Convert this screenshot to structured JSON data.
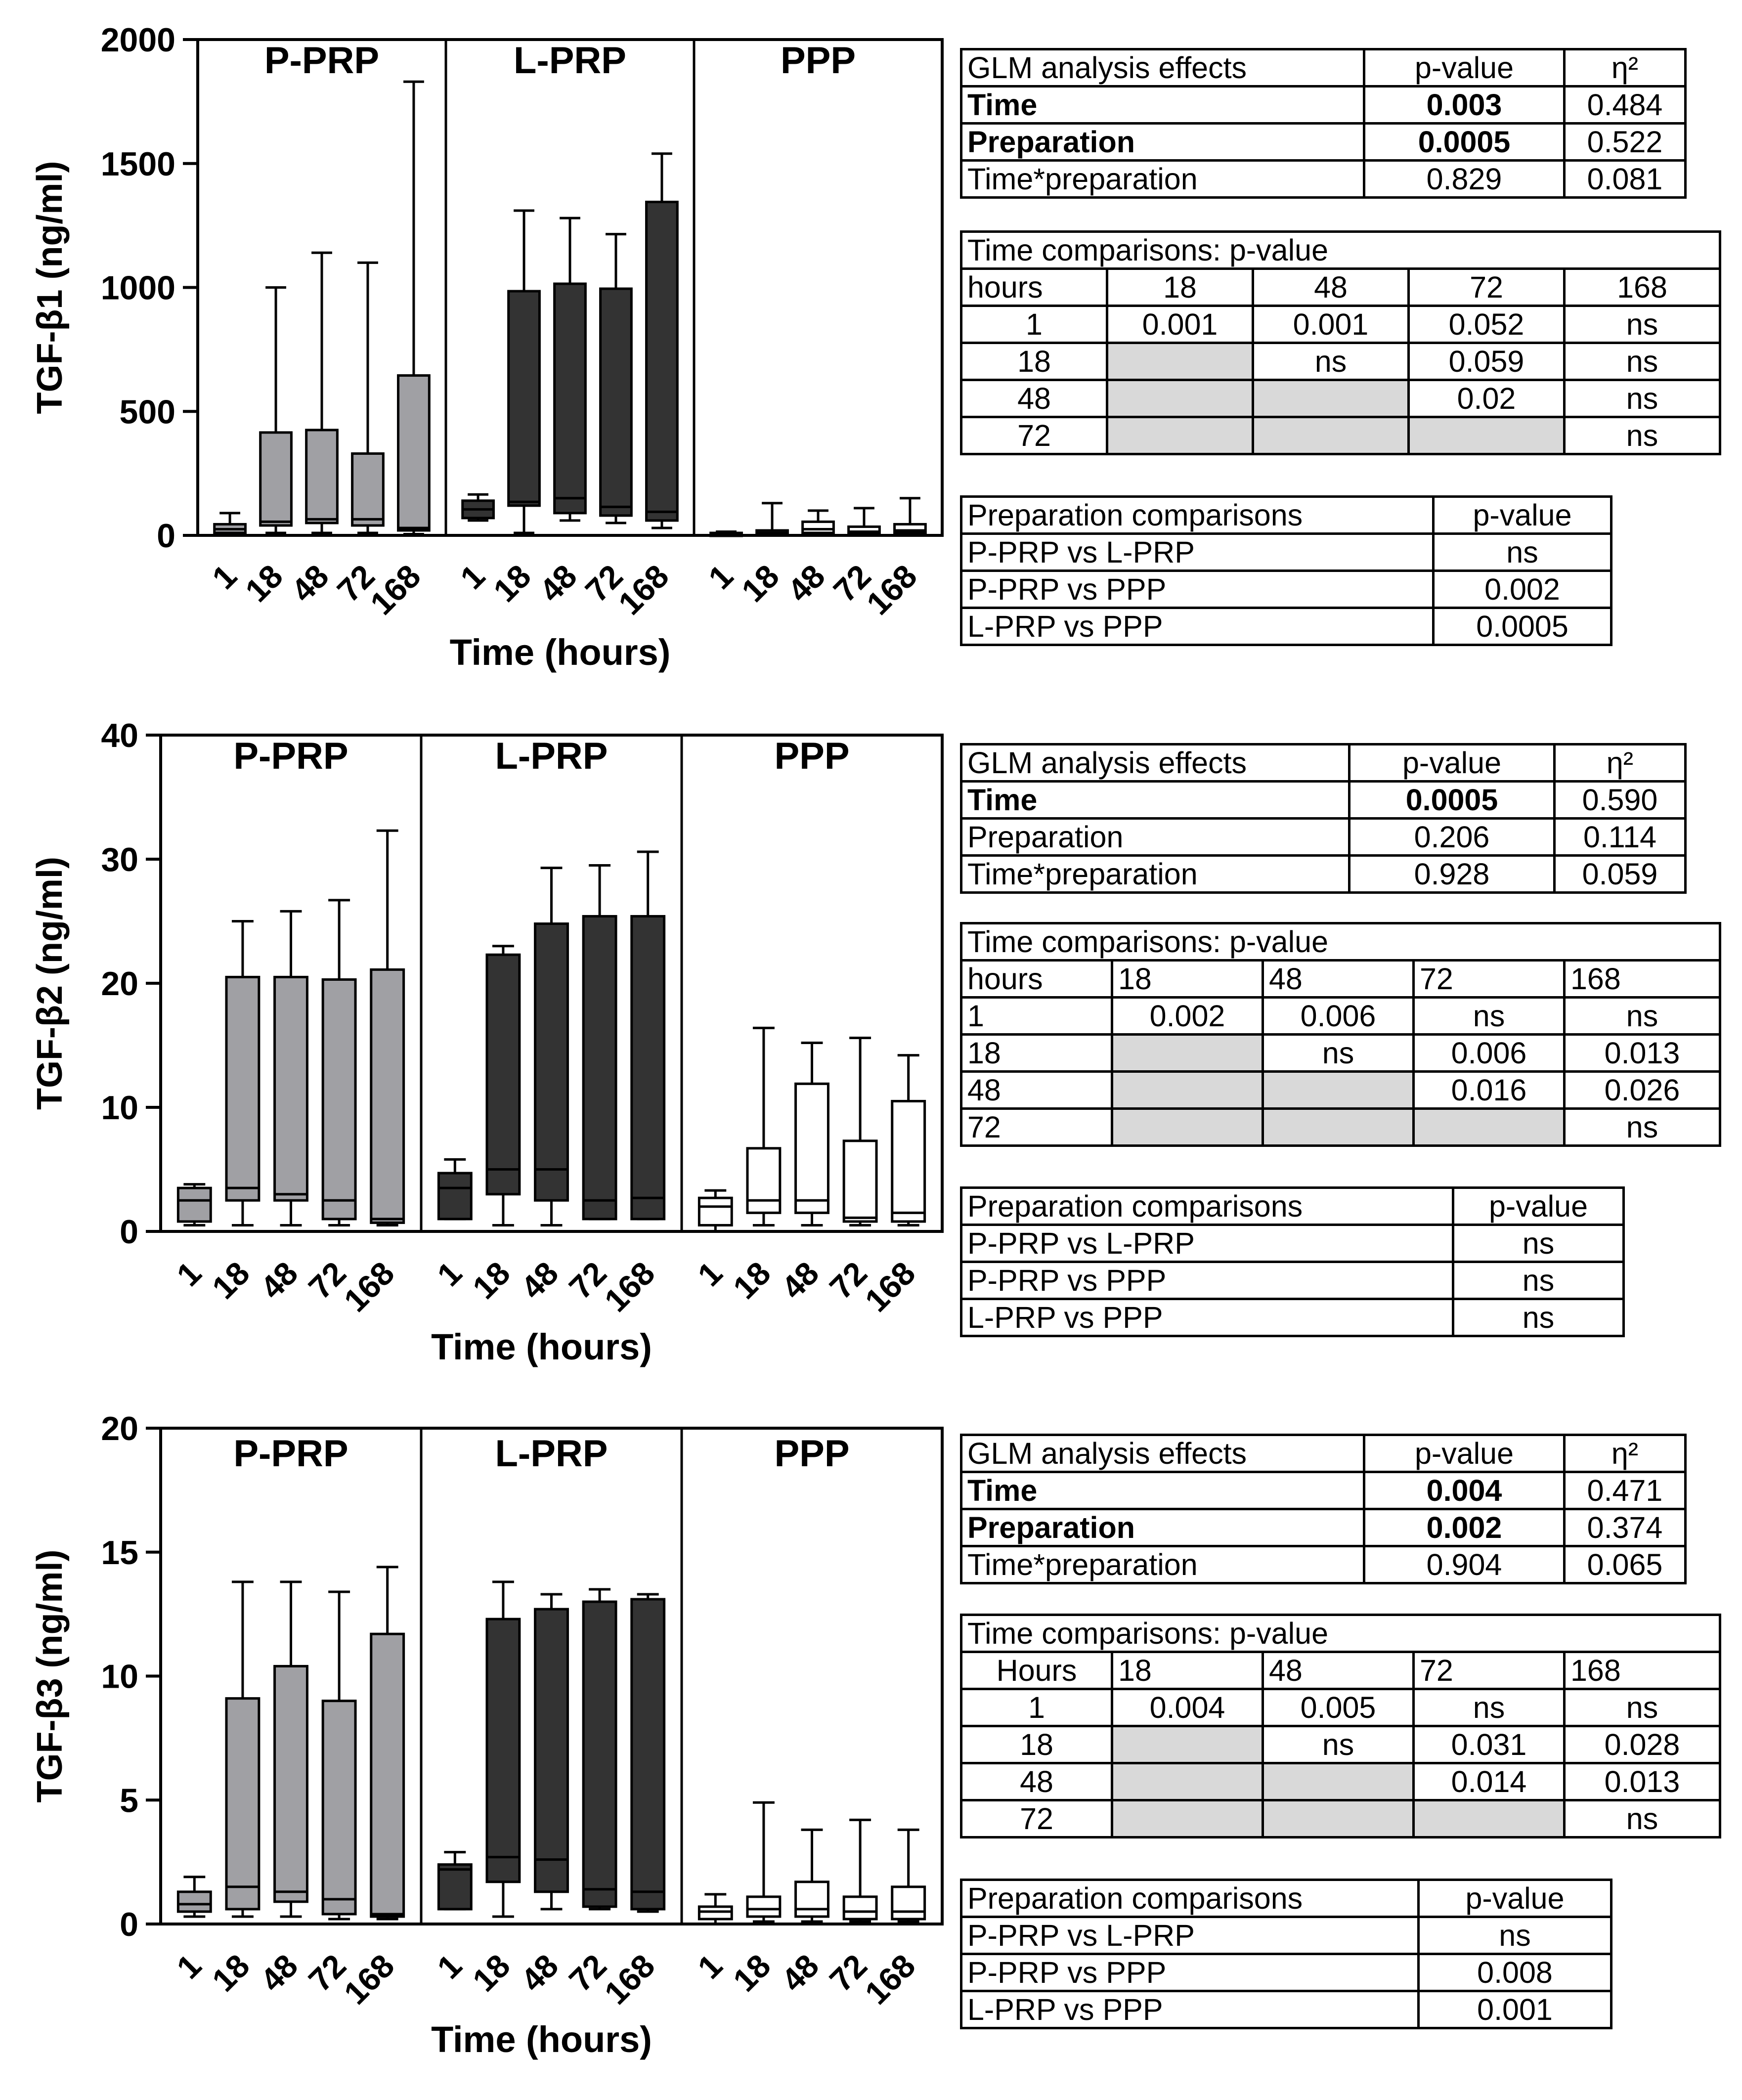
{
  "colors": {
    "p_prp": "#a0a0a4",
    "l_prp": "#333333",
    "ppp": "#ffffff",
    "grid_gray": "#d9d9d9"
  },
  "chart_data": [
    {
      "type": "box",
      "ylabel": "TGF-β1 (ng/ml)",
      "xlabel": "Time (hours)",
      "ylim": [
        0,
        2000
      ],
      "yticks": [
        "0",
        "500",
        "1000",
        "1500",
        "2000"
      ],
      "categories": [
        "1",
        "18",
        "48",
        "72",
        "168"
      ],
      "groups": [
        {
          "name": "P-PRP",
          "boxes": [
            {
              "min": 0,
              "q1": 10,
              "median": 25,
              "q3": 45,
              "max": 90
            },
            {
              "min": 10,
              "q1": 40,
              "median": 55,
              "q3": 415,
              "max": 1000
            },
            {
              "min": 10,
              "q1": 50,
              "median": 65,
              "q3": 425,
              "max": 1140
            },
            {
              "min": 10,
              "q1": 40,
              "median": 65,
              "q3": 330,
              "max": 1100
            },
            {
              "min": 5,
              "q1": 20,
              "median": 30,
              "q3": 645,
              "max": 1830
            }
          ]
        },
        {
          "name": "L-PRP",
          "boxes": [
            {
              "min": 60,
              "q1": 70,
              "median": 105,
              "q3": 140,
              "max": 165
            },
            {
              "min": 10,
              "q1": 120,
              "median": 135,
              "q3": 985,
              "max": 1310
            },
            {
              "min": 60,
              "q1": 90,
              "median": 150,
              "q3": 1015,
              "max": 1280
            },
            {
              "min": 50,
              "q1": 80,
              "median": 115,
              "q3": 995,
              "max": 1215
            },
            {
              "min": 30,
              "q1": 60,
              "median": 95,
              "q3": 1345,
              "max": 1540
            }
          ]
        },
        {
          "name": "PPP",
          "boxes": [
            {
              "min": 0,
              "q1": 2,
              "median": 5,
              "q3": 10,
              "max": 15
            },
            {
              "min": 0,
              "q1": 5,
              "median": 10,
              "q3": 20,
              "max": 130
            },
            {
              "min": 0,
              "q1": 10,
              "median": 25,
              "q3": 55,
              "max": 100
            },
            {
              "min": 0,
              "q1": 5,
              "median": 15,
              "q3": 35,
              "max": 110
            },
            {
              "min": 0,
              "q1": 10,
              "median": 20,
              "q3": 45,
              "max": 150
            }
          ]
        }
      ]
    },
    {
      "type": "box",
      "ylabel": "TGF-β2 (ng/ml)",
      "xlabel": "Time (hours)",
      "ylim": [
        0,
        40
      ],
      "yticks": [
        "0",
        "10",
        "20",
        "30",
        "40"
      ],
      "categories": [
        "1",
        "18",
        "48",
        "72",
        "168"
      ],
      "groups": [
        {
          "name": "P-PRP",
          "boxes": [
            {
              "min": 0.5,
              "q1": 0.8,
              "median": 2.5,
              "q3": 3.5,
              "max": 3.8
            },
            {
              "min": 0.5,
              "q1": 2.5,
              "median": 3.5,
              "q3": 20.5,
              "max": 25
            },
            {
              "min": 0.5,
              "q1": 2.5,
              "median": 3,
              "q3": 20.5,
              "max": 25.8
            },
            {
              "min": 0.5,
              "q1": 1,
              "median": 2.5,
              "q3": 20.3,
              "max": 26.7
            },
            {
              "min": 0.5,
              "q1": 0.7,
              "median": 1,
              "q3": 21.1,
              "max": 32.3
            }
          ]
        },
        {
          "name": "L-PRP",
          "boxes": [
            {
              "min": 1,
              "q1": 1,
              "median": 3.5,
              "q3": 4.7,
              "max": 5.8
            },
            {
              "min": 0.5,
              "q1": 3,
              "median": 5,
              "q3": 22.3,
              "max": 23
            },
            {
              "min": 0.5,
              "q1": 2.5,
              "median": 5,
              "q3": 24.8,
              "max": 29.3
            },
            {
              "min": 1,
              "q1": 1,
              "median": 2.5,
              "q3": 25.4,
              "max": 29.5
            },
            {
              "min": 1,
              "q1": 1,
              "median": 2.7,
              "q3": 25.4,
              "max": 30.6
            }
          ]
        },
        {
          "name": "PPP",
          "boxes": [
            {
              "min": 0,
              "q1": 0.5,
              "median": 2,
              "q3": 2.7,
              "max": 3.3
            },
            {
              "min": 0.5,
              "q1": 1.5,
              "median": 2.5,
              "q3": 6.7,
              "max": 16.4
            },
            {
              "min": 0.5,
              "q1": 1.5,
              "median": 2.5,
              "q3": 11.9,
              "max": 15.2
            },
            {
              "min": 0.5,
              "q1": 0.8,
              "median": 1.1,
              "q3": 7.3,
              "max": 15.6
            },
            {
              "min": 0.5,
              "q1": 0.8,
              "median": 1.5,
              "q3": 10.5,
              "max": 14.2
            }
          ]
        }
      ]
    },
    {
      "type": "box",
      "ylabel": "TGF-β3 (ng/ml)",
      "xlabel": "Time (hours)",
      "ylim": [
        0,
        20
      ],
      "yticks": [
        "0",
        "5",
        "10",
        "15",
        "20"
      ],
      "categories": [
        "1",
        "18",
        "48",
        "72",
        "168"
      ],
      "groups": [
        {
          "name": "P-PRP",
          "boxes": [
            {
              "min": 0.3,
              "q1": 0.5,
              "median": 0.8,
              "q3": 1.3,
              "max": 1.9
            },
            {
              "min": 0.3,
              "q1": 0.6,
              "median": 1.5,
              "q3": 9.1,
              "max": 13.8
            },
            {
              "min": 0.3,
              "q1": 0.9,
              "median": 1.3,
              "q3": 10.4,
              "max": 13.8
            },
            {
              "min": 0.2,
              "q1": 0.4,
              "median": 1,
              "q3": 9,
              "max": 13.4
            },
            {
              "min": 0.2,
              "q1": 0.3,
              "median": 0.4,
              "q3": 11.7,
              "max": 14.4
            }
          ]
        },
        {
          "name": "L-PRP",
          "boxes": [
            {
              "min": 0.6,
              "q1": 0.6,
              "median": 2.2,
              "q3": 2.4,
              "max": 2.9
            },
            {
              "min": 0.3,
              "q1": 1.7,
              "median": 2.7,
              "q3": 12.3,
              "max": 13.8
            },
            {
              "min": 0.6,
              "q1": 1.3,
              "median": 2.6,
              "q3": 12.7,
              "max": 13.3
            },
            {
              "min": 0.6,
              "q1": 0.7,
              "median": 1.4,
              "q3": 13,
              "max": 13.5
            },
            {
              "min": 0.5,
              "q1": 0.6,
              "median": 1.3,
              "q3": 13.1,
              "max": 13.3
            }
          ]
        },
        {
          "name": "PPP",
          "boxes": [
            {
              "min": 0,
              "q1": 0.2,
              "median": 0.5,
              "q3": 0.7,
              "max": 1.2
            },
            {
              "min": 0.1,
              "q1": 0.3,
              "median": 0.6,
              "q3": 1.1,
              "max": 4.9
            },
            {
              "min": 0.1,
              "q1": 0.3,
              "median": 0.6,
              "q3": 1.7,
              "max": 3.8
            },
            {
              "min": 0.1,
              "q1": 0.2,
              "median": 0.5,
              "q3": 1.1,
              "max": 4.2
            },
            {
              "min": 0.1,
              "q1": 0.2,
              "median": 0.5,
              "q3": 1.5,
              "max": 3.8
            }
          ]
        }
      ]
    }
  ],
  "tables": [
    {
      "glm": {
        "header": [
          "GLM  analysis effects",
          "p-value",
          "η²"
        ],
        "rows": [
          {
            "effect": "Time",
            "p": "0.003",
            "eta": "0.484"
          },
          {
            "effect": "Preparation",
            "p": "0.0005",
            "eta": "0.522"
          },
          {
            "effect": "Time*preparation",
            "p": "0.829",
            "eta": "0.081"
          }
        ]
      },
      "time": {
        "title": "Time  comparisons: p-value",
        "header": [
          "hours",
          "18",
          "48",
          "72",
          "168"
        ],
        "rows": [
          [
            "1",
            "0.001",
            "0.001",
            "0.052",
            "ns"
          ],
          [
            "18",
            "",
            "ns",
            "0.059",
            "ns"
          ],
          [
            "48",
            "",
            "",
            "0.02",
            "ns"
          ],
          [
            "72",
            "",
            "",
            "",
            "ns"
          ]
        ]
      },
      "prep": {
        "header": [
          "Preparation comparisons",
          "p-value"
        ],
        "rows": [
          [
            "P-PRP  vs L-PRP",
            "ns"
          ],
          [
            "P-PRP vs PPP",
            "0.002"
          ],
          [
            "L-PRP vs PPP",
            "0.0005"
          ]
        ]
      }
    },
    {
      "glm": {
        "header": [
          "GLM analysis effects",
          "p-value",
          "η²"
        ],
        "rows": [
          {
            "effect": "Time",
            "p": "0.0005",
            "eta": "0.590"
          },
          {
            "effect": "Preparation",
            "p": "0.206",
            "eta": "0.114"
          },
          {
            "effect": "Time*preparation",
            "p": "0.928",
            "eta": "0.059"
          }
        ]
      },
      "time": {
        "title": "Time  comparisons: p-value",
        "header": [
          "hours",
          "18",
          "48",
          "72",
          "168"
        ],
        "rows": [
          [
            "1",
            "0.002",
            "0.006",
            "ns",
            "ns"
          ],
          [
            "18",
            "",
            "ns",
            "0.006",
            "0.013"
          ],
          [
            "48",
            "",
            "",
            "0.016",
            "0.026"
          ],
          [
            "72",
            "",
            "",
            "",
            "ns"
          ]
        ]
      },
      "prep": {
        "header": [
          "Preparation comparisons",
          "p-value"
        ],
        "rows": [
          [
            "P-PRP  vs L-PRP",
            "ns"
          ],
          [
            "P-PRP vs PPP",
            "ns"
          ],
          [
            "L-PRP vs PPP",
            "ns"
          ]
        ]
      }
    },
    {
      "glm": {
        "header": [
          "GLM analysis effects",
          "p-value",
          "η²"
        ],
        "rows": [
          {
            "effect": "Time",
            "p": "0.004",
            "eta": "0.471"
          },
          {
            "effect": "Preparation",
            "p": "0.002",
            "eta": "0.374"
          },
          {
            "effect": "Time*preparation",
            "p": "0.904",
            "eta": "0.065"
          }
        ]
      },
      "time": {
        "title": "Time  comparisons: p-value",
        "header": [
          "Hours",
          "18",
          "48",
          "72",
          "168"
        ],
        "rows": [
          [
            "1",
            "0.004",
            "0.005",
            "ns",
            "ns"
          ],
          [
            "18",
            "",
            "ns",
            "0.031",
            "0.028"
          ],
          [
            "48",
            "",
            "",
            "0.014",
            "0.013"
          ],
          [
            "72",
            "",
            "",
            "",
            "ns"
          ]
        ]
      },
      "prep": {
        "header": [
          "Preparation comparisons",
          "p-value"
        ],
        "rows": [
          [
            "P-PRP  vs L-PRP",
            "ns"
          ],
          [
            "P-PRP vs PPP",
            "0.008"
          ],
          [
            "L-PRP vs PPP",
            "0.001"
          ]
        ]
      }
    }
  ]
}
